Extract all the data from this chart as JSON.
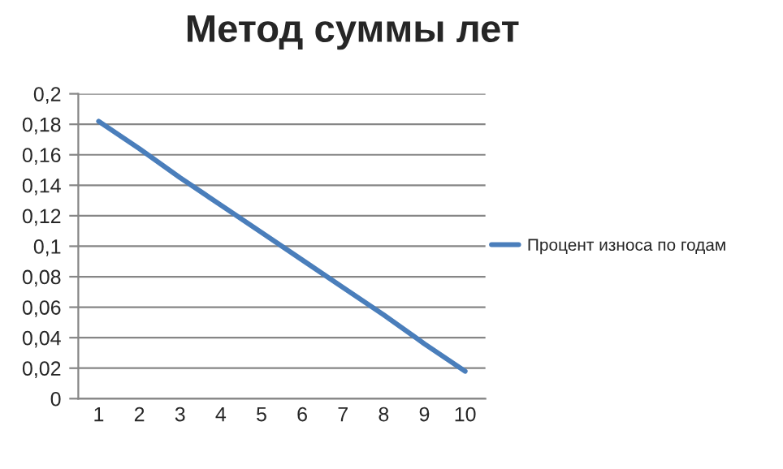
{
  "chart_data": {
    "type": "line",
    "title": "Метод суммы лет",
    "categories": [
      "1",
      "2",
      "3",
      "4",
      "5",
      "6",
      "7",
      "8",
      "9",
      "10"
    ],
    "series": [
      {
        "name": "Процент износа по годам",
        "color": "#4a7ebb",
        "values": [
          0.182,
          0.164,
          0.145,
          0.127,
          0.109,
          0.091,
          0.073,
          0.055,
          0.036,
          0.018
        ]
      }
    ],
    "ylim": [
      0,
      0.2
    ],
    "yticks": [
      0,
      {
        "value": 0.02,
        "label": "0,02"
      },
      {
        "value": 0.04,
        "label": "0,04"
      },
      {
        "value": 0.06,
        "label": "0,06"
      },
      {
        "value": 0.08,
        "label": "0,08"
      },
      {
        "value": 0.1,
        "label": "0,1"
      },
      {
        "value": 0.12,
        "label": "0,12"
      },
      {
        "value": 0.14,
        "label": "0,14"
      },
      {
        "value": 0.16,
        "label": "0,16"
      },
      {
        "value": 0.18,
        "label": "0,18"
      },
      {
        "value": 0.2,
        "label": "0,2"
      }
    ],
    "grid": "y",
    "legend": "right",
    "marker": "none",
    "line_style": "solid"
  }
}
